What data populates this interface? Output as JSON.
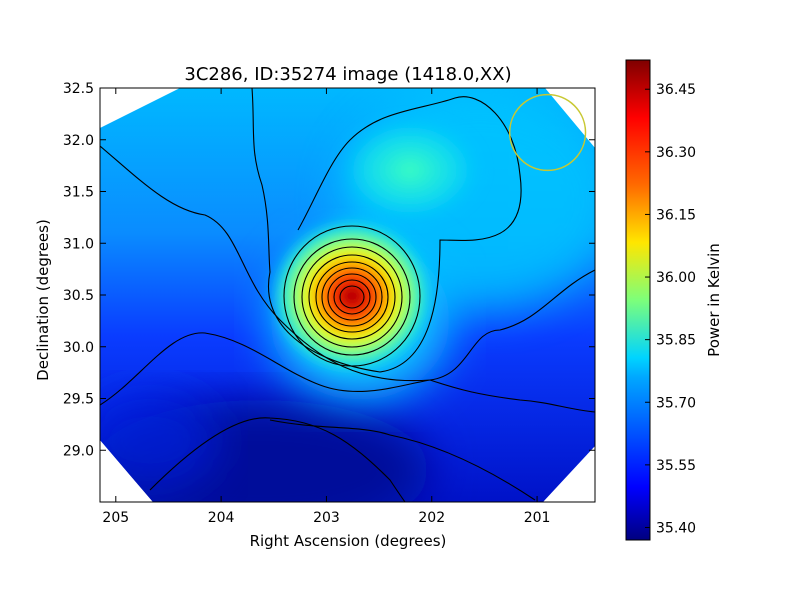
{
  "chart_data": {
    "type": "heatmap",
    "title": "3C286, ID:35274 image (1418.0,XX)",
    "xlabel": "Right Ascension (degrees)",
    "ylabel": "Declination (degrees)",
    "xlim": [
      205.15,
      200.45
    ],
    "ylim": [
      28.5,
      32.5
    ],
    "x_ticks": [
      205,
      204,
      203,
      202,
      201
    ],
    "y_ticks": [
      29.0,
      29.5,
      30.0,
      30.5,
      31.0,
      31.5,
      32.0,
      32.5
    ],
    "x_tick_labels": [
      "205",
      "204",
      "203",
      "202",
      "201"
    ],
    "y_tick_labels": [
      "29.0",
      "29.5",
      "30.0",
      "30.5",
      "31.0",
      "31.5",
      "32.0",
      "32.5"
    ],
    "peak": {
      "ra": 202.75,
      "dec": 30.5,
      "value": 36.5
    },
    "secondary_lobe": {
      "ra": 202.2,
      "dec": 31.75
    },
    "beam_circle": {
      "ra": 200.9,
      "dec": 32.07,
      "radius_deg": 0.36,
      "color": "#c8c832"
    },
    "grid": false,
    "colorbar": {
      "label": "Power in Kelvin",
      "min": 35.37,
      "max": 36.52,
      "ticks": [
        35.4,
        35.55,
        35.7,
        35.85,
        36.0,
        36.15,
        36.3,
        36.45
      ],
      "tick_labels": [
        "35.40",
        "35.55",
        "35.70",
        "35.85",
        "36.00",
        "36.15",
        "36.30",
        "36.45"
      ],
      "colormap": "jet"
    },
    "contour_color": "#000000"
  }
}
